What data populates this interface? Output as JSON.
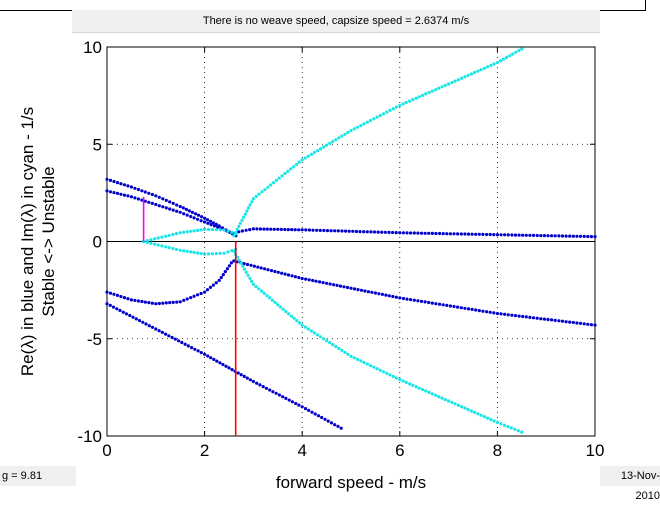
{
  "banner": "There is no weave speed, capsize speed = 2.6374 m/s",
  "footer": {
    "left": "g = 9.81",
    "right": "13-Nov-2010"
  },
  "colors": {
    "real": "#0000cc",
    "imag": "#19e6e6",
    "capsize": "#ff0000",
    "weave_marker": "#ff00ff"
  },
  "chart_data": {
    "type": "scatter",
    "xlabel": "forward speed - m/s",
    "ylabel": [
      "Re(λ) in blue and Im(λ) in cyan - 1/s",
      "Stable <-> Unstable"
    ],
    "xlim": [
      0,
      10
    ],
    "ylim": [
      -10,
      10
    ],
    "xticks": [
      0,
      2,
      4,
      6,
      8,
      10
    ],
    "yticks": [
      10,
      5,
      0,
      -5,
      -10
    ],
    "xtick_labels": [
      "0",
      "2",
      "4",
      "6",
      "8",
      "10"
    ],
    "ytick_labels": [
      "10",
      "5",
      "0",
      "-5",
      "-10"
    ],
    "grid": true,
    "capsize_speed": 2.6374,
    "magenta_marker": {
      "x": 0.75,
      "y_from": 0,
      "y_to": 2.3
    },
    "series": [
      {
        "color": "real",
        "points": [
          [
            0,
            3.2
          ],
          [
            0.5,
            2.8
          ],
          [
            1.0,
            2.35
          ],
          [
            1.5,
            1.8
          ],
          [
            2.0,
            1.2
          ],
          [
            2.3,
            0.8
          ],
          [
            2.5,
            0.5
          ],
          [
            2.64,
            0.3
          ]
        ]
      },
      {
        "color": "real",
        "points": [
          [
            0,
            2.6
          ],
          [
            0.5,
            2.3
          ],
          [
            1.0,
            1.9
          ],
          [
            1.5,
            1.5
          ],
          [
            2.0,
            1.0
          ],
          [
            2.4,
            0.6
          ],
          [
            2.64,
            0.35
          ]
        ]
      },
      {
        "color": "real",
        "points": [
          [
            2.7,
            0.5
          ],
          [
            3.0,
            0.65
          ],
          [
            4.0,
            0.6
          ],
          [
            6.0,
            0.45
          ],
          [
            8.0,
            0.35
          ],
          [
            10.0,
            0.25
          ]
        ]
      },
      {
        "color": "real",
        "points": [
          [
            2.6,
            -1.0
          ],
          [
            4.0,
            -1.9
          ],
          [
            6.0,
            -2.9
          ],
          [
            8.0,
            -3.7
          ],
          [
            10.0,
            -4.3
          ]
        ]
      },
      {
        "color": "real",
        "points": [
          [
            0,
            -2.6
          ],
          [
            0.5,
            -3.0
          ],
          [
            1.0,
            -3.2
          ],
          [
            1.5,
            -3.1
          ],
          [
            2.0,
            -2.6
          ],
          [
            2.3,
            -2.0
          ],
          [
            2.55,
            -1.1
          ]
        ]
      },
      {
        "color": "real",
        "points": [
          [
            0,
            -3.2
          ],
          [
            1.0,
            -4.5
          ],
          [
            2.0,
            -5.8
          ],
          [
            3.0,
            -7.2
          ],
          [
            4.0,
            -8.5
          ],
          [
            4.8,
            -9.6
          ]
        ]
      },
      {
        "color": "imag",
        "points": [
          [
            0.75,
            0
          ],
          [
            1.5,
            0.45
          ],
          [
            2.0,
            0.62
          ],
          [
            2.4,
            0.6
          ],
          [
            2.64,
            0.4
          ]
        ]
      },
      {
        "color": "imag",
        "points": [
          [
            0.75,
            0
          ],
          [
            1.5,
            -0.45
          ],
          [
            2.0,
            -0.65
          ],
          [
            2.4,
            -0.6
          ],
          [
            2.64,
            -0.4
          ]
        ]
      },
      {
        "color": "imag",
        "points": [
          [
            2.6,
            0.3
          ],
          [
            3.0,
            2.2
          ],
          [
            4.0,
            4.2
          ],
          [
            5.0,
            5.7
          ],
          [
            6.0,
            7.0
          ],
          [
            7.0,
            8.1
          ],
          [
            8.0,
            9.2
          ],
          [
            8.5,
            9.9
          ]
        ]
      },
      {
        "color": "imag",
        "points": [
          [
            2.6,
            -0.5
          ],
          [
            3.0,
            -2.2
          ],
          [
            4.0,
            -4.3
          ],
          [
            5.0,
            -5.9
          ],
          [
            6.0,
            -7.1
          ],
          [
            7.0,
            -8.2
          ],
          [
            8.0,
            -9.3
          ],
          [
            8.5,
            -9.8
          ]
        ]
      }
    ]
  }
}
